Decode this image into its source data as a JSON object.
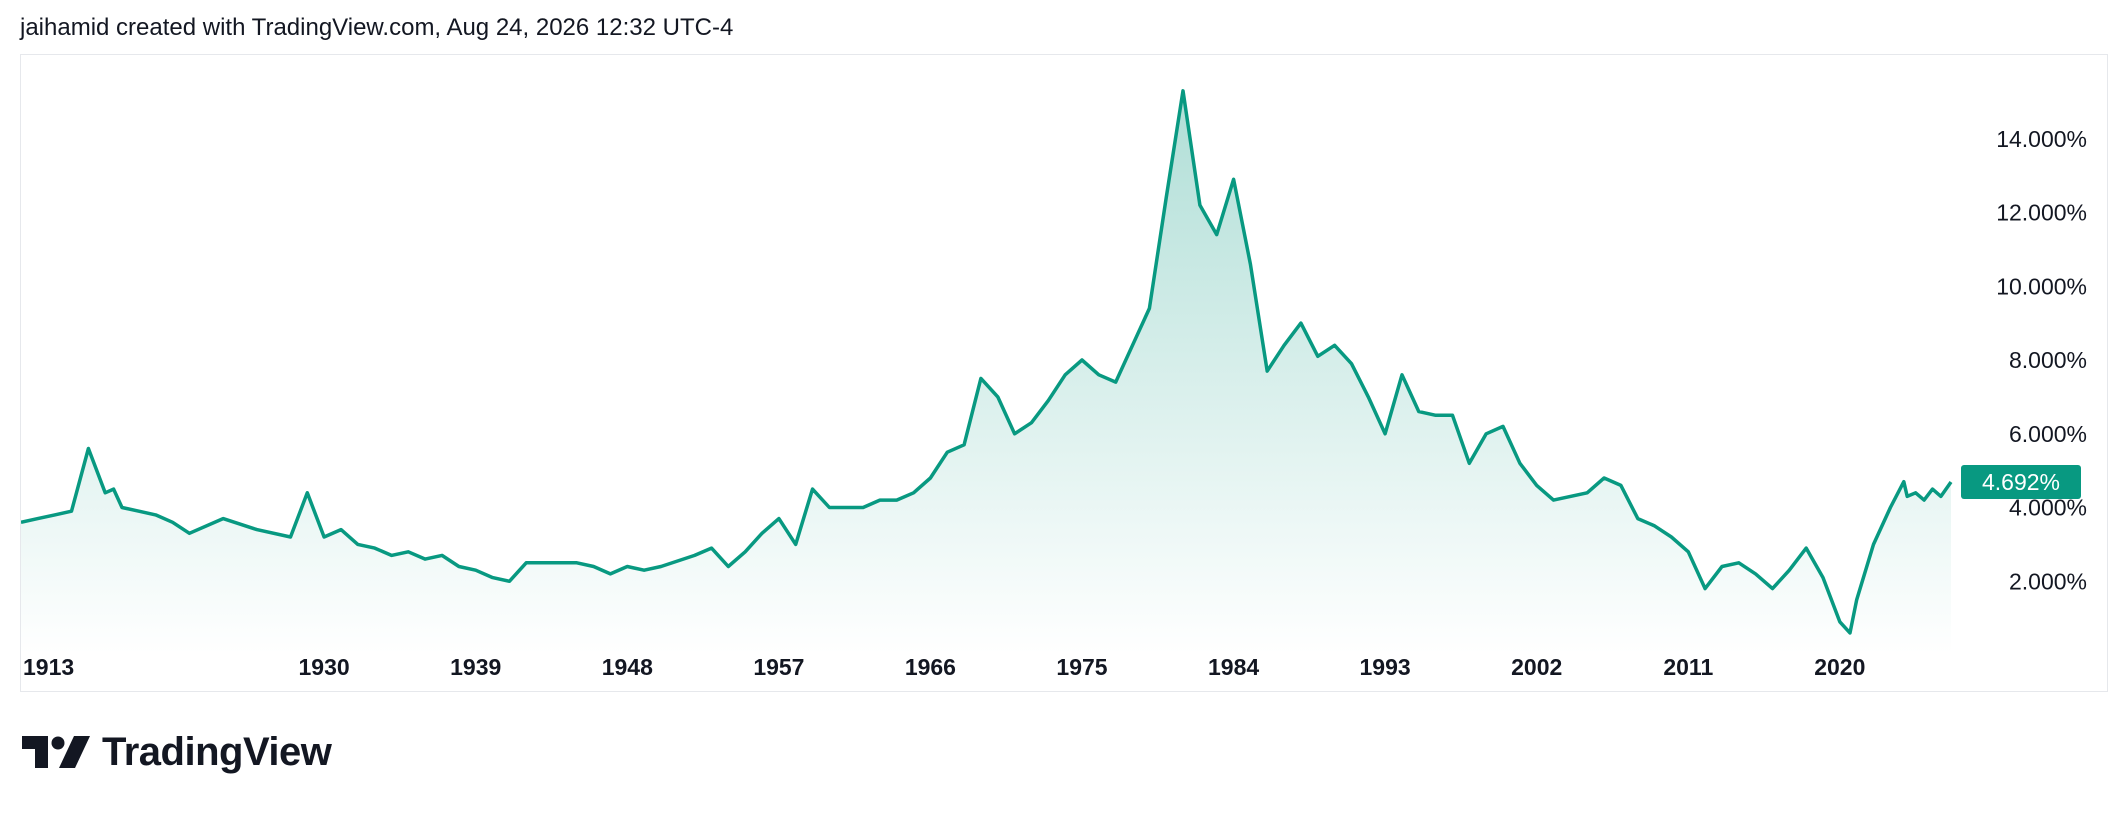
{
  "header": {
    "attribution": "jaihamid created with TradingView.com, Aug 24, 2026 12:32 UTC-4"
  },
  "brand": {
    "name": "TradingView",
    "logo_icon": "tradingview-logo-icon"
  },
  "colors": {
    "line": "#089981",
    "fill_top": "#089981",
    "badge_bg": "#089981",
    "badge_text": "#ffffff",
    "axis_text": "#131722",
    "frame_border": "#e6e8ec"
  },
  "chart_data": {
    "type": "area",
    "title": "",
    "xlabel": "",
    "ylabel": "",
    "x_ticks": [
      "1913",
      "1930",
      "1939",
      "1948",
      "1957",
      "1966",
      "1975",
      "1984",
      "1993",
      "2002",
      "2011",
      "2020"
    ],
    "y_ticks": [
      "2.000%",
      "4.000%",
      "6.000%",
      "8.000%",
      "10.000%",
      "12.000%",
      "14.000%"
    ],
    "y_tick_values": [
      2,
      4,
      6,
      8,
      10,
      12,
      14
    ],
    "xlim": [
      1912,
      2026.6
    ],
    "ylim": [
      0,
      16
    ],
    "y_axis_position": "right",
    "grid": false,
    "last_value": 4.692,
    "last_value_label": "4.692%",
    "series": [
      {
        "x": [
          1912.0,
          1913.0,
          1914.0,
          1915.0,
          1916.0,
          1917.0,
          1917.5,
          1918.0,
          1919.0,
          1920.0,
          1921.0,
          1922.0,
          1924.0,
          1926.0,
          1928.0,
          1929.0,
          1930.0,
          1931.0,
          1932.0,
          1933.0,
          1934.0,
          1935.0,
          1936.0,
          1937.0,
          1938.0,
          1939.0,
          1940.0,
          1941.0,
          1942.0,
          1945.0,
          1946.0,
          1947.0,
          1948.0,
          1949.0,
          1950.0,
          1952.0,
          1953.0,
          1954.0,
          1955.0,
          1956.0,
          1957.0,
          1958.0,
          1959.0,
          1960.0,
          1961.0,
          1962.0,
          1963.0,
          1964.0,
          1965.0,
          1966.0,
          1967.0,
          1968.0,
          1969.0,
          1970.0,
          1971.0,
          1972.0,
          1973.0,
          1974.0,
          1975.0,
          1976.0,
          1977.0,
          1978.0,
          1979.0,
          1980.0,
          1981.0,
          1982.0,
          1983.0,
          1984.0,
          1985.0,
          1986.0,
          1987.0,
          1988.0,
          1989.0,
          1990.0,
          1991.0,
          1992.0,
          1993.0,
          1994.0,
          1995.0,
          1996.0,
          1997.0,
          1998.0,
          1999.0,
          2000.0,
          2001.0,
          2002.0,
          2003.0,
          2004.0,
          2005.0,
          2006.0,
          2007.0,
          2008.0,
          2009.0,
          2010.0,
          2011.0,
          2012.0,
          2013.0,
          2014.0,
          2015.0,
          2016.0,
          2017.0,
          2018.0,
          2019.0,
          2020.0,
          2020.6,
          2021.0,
          2022.0,
          2023.0,
          2023.8,
          2024.0,
          2024.5,
          2025.0,
          2025.5,
          2026.0,
          2026.6
        ],
        "values": [
          3.6,
          3.7,
          3.8,
          3.9,
          5.6,
          4.4,
          4.5,
          4.0,
          3.9,
          3.8,
          3.6,
          3.3,
          3.7,
          3.4,
          3.2,
          4.4,
          3.2,
          3.4,
          3.0,
          2.9,
          2.7,
          2.8,
          2.6,
          2.7,
          2.4,
          2.3,
          2.1,
          2.0,
          2.5,
          2.5,
          2.4,
          2.2,
          2.4,
          2.3,
          2.4,
          2.7,
          2.9,
          2.4,
          2.8,
          3.3,
          3.7,
          3.0,
          4.5,
          4.0,
          4.0,
          4.0,
          4.2,
          4.2,
          4.4,
          4.8,
          5.5,
          5.7,
          7.5,
          7.0,
          6.0,
          6.3,
          6.9,
          7.6,
          8.0,
          7.6,
          7.4,
          8.4,
          9.4,
          12.4,
          15.3,
          12.2,
          11.4,
          12.9,
          10.6,
          7.7,
          8.4,
          9.0,
          8.1,
          8.4,
          7.9,
          7.0,
          6.0,
          7.6,
          6.6,
          6.5,
          6.5,
          5.2,
          6.0,
          6.2,
          5.2,
          4.6,
          4.2,
          4.3,
          4.4,
          4.8,
          4.6,
          3.7,
          3.5,
          3.2,
          2.8,
          1.8,
          2.4,
          2.5,
          2.2,
          1.8,
          2.3,
          2.9,
          2.1,
          0.9,
          0.6,
          1.5,
          3.0,
          4.0,
          4.7,
          4.3,
          4.4,
          4.2,
          4.5,
          4.3,
          4.692
        ]
      }
    ]
  }
}
